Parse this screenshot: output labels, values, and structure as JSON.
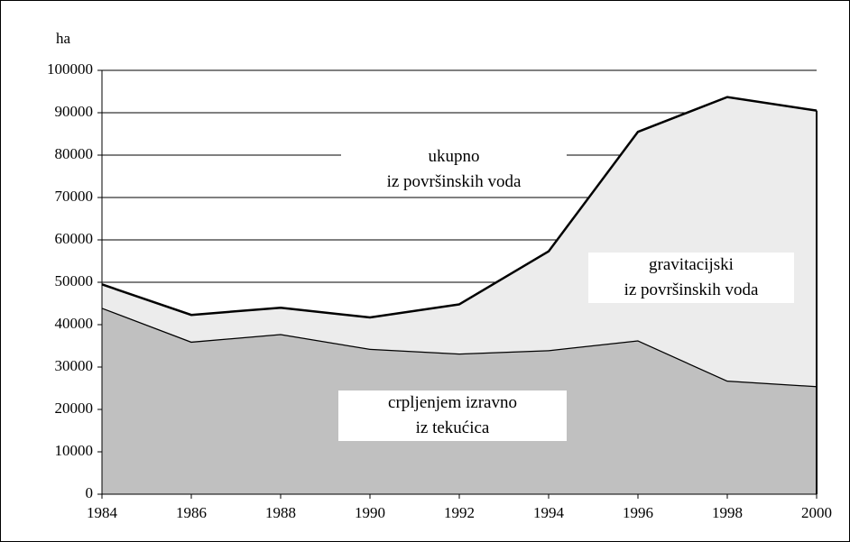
{
  "chart_data": {
    "type": "stacked_area",
    "y_axis_label": "ha",
    "x": [
      1984,
      1986,
      1988,
      1990,
      1992,
      1994,
      1996,
      1998,
      2000
    ],
    "xlim": [
      1984,
      2000
    ],
    "xticks": [
      1984,
      1986,
      1988,
      1990,
      1992,
      1994,
      1996,
      1998,
      2000
    ],
    "ylim": [
      0,
      100000
    ],
    "yticks": [
      0,
      10000,
      20000,
      30000,
      40000,
      50000,
      60000,
      70000,
      80000,
      90000,
      100000
    ],
    "grid": true,
    "series": [
      {
        "name": "crpljenjem izravno\niz tekućica",
        "color": "#c0c0c0",
        "values": [
          44000,
          36000,
          37800,
          34300,
          33200,
          34000,
          36300,
          26800,
          25500
        ]
      },
      {
        "name": "gravitacijski\niz površinskih voda",
        "color": "#ececec",
        "values": [
          5500,
          6300,
          6200,
          7400,
          11600,
          23300,
          49200,
          66900,
          65000
        ]
      }
    ],
    "annotations": [
      {
        "text": "ukupno\niz površinskih voda"
      }
    ]
  }
}
